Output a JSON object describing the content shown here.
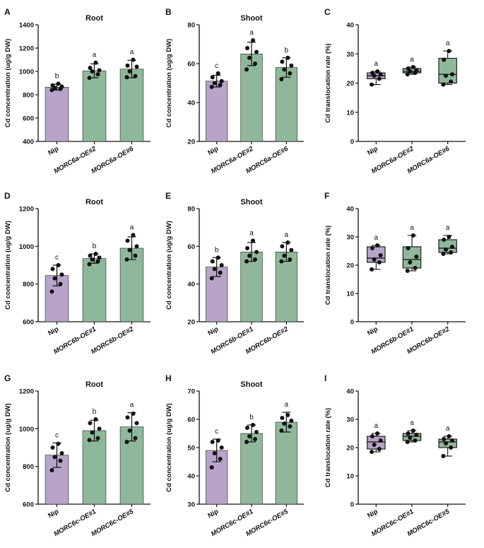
{
  "colors": {
    "nip": "#b8a3c9",
    "oe": "#8fb89a",
    "stroke": "#222222",
    "point": "#111111"
  },
  "chart_data": [
    {
      "panel": "A",
      "type": "bar",
      "title": "Root",
      "ylabel": "Cd concentration (ug/g DW)",
      "ylim": [
        400,
        1400
      ],
      "yticks": [
        400,
        600,
        800,
        1000,
        1200,
        1400
      ],
      "categories": [
        "Nip",
        "MORC6a-OE#2",
        "MORC6a-OE#6"
      ],
      "values": [
        865,
        1005,
        1020
      ],
      "errors": [
        25,
        60,
        75
      ],
      "letters": [
        "b",
        "a",
        "a"
      ],
      "points": [
        [
          840,
          850,
          860,
          870,
          880,
          895
        ],
        [
          945,
          975,
          1000,
          1010,
          1030,
          1075
        ],
        [
          950,
          960,
          1000,
          1040,
          1050,
          1100
        ]
      ]
    },
    {
      "panel": "B",
      "type": "bar",
      "title": "Shoot",
      "ylabel": "Cd concentration (ug/g DW)",
      "ylim": [
        20,
        80
      ],
      "yticks": [
        20,
        40,
        60,
        80
      ],
      "categories": [
        "Nip",
        "MORC6a-OE#2",
        "MORC6a-OE#6"
      ],
      "values": [
        51,
        65,
        58
      ],
      "errors": [
        3,
        6,
        5
      ],
      "letters": [
        "c",
        "a",
        "b"
      ],
      "points": [
        [
          48,
          49,
          50,
          51,
          53,
          55
        ],
        [
          57,
          60,
          63,
          66,
          68,
          72
        ],
        [
          52,
          55,
          57,
          59,
          61,
          63
        ]
      ]
    },
    {
      "panel": "C",
      "type": "box",
      "ylabel": "Cd translocation rate (%)",
      "ylim": [
        0,
        40
      ],
      "yticks": [
        0,
        10,
        20,
        30,
        40
      ],
      "categories": [
        "Nip",
        "MORC6a-OE#2",
        "MORC6a-OE#6"
      ],
      "letters": [
        "a",
        "a",
        "a"
      ],
      "boxes": [
        {
          "min": 19.5,
          "q1": 21.5,
          "median": 22.5,
          "q3": 23.5,
          "max": 24
        },
        {
          "min": 23,
          "q1": 23.5,
          "median": 24,
          "q3": 25,
          "max": 25.5
        },
        {
          "min": 19.5,
          "q1": 20,
          "median": 23,
          "q3": 28.5,
          "max": 31
        }
      ],
      "points": [
        [
          19.5,
          21.5,
          22.5,
          23,
          23.5,
          24
        ],
        [
          23,
          23.5,
          24,
          24.3,
          25,
          25.5
        ],
        [
          19.5,
          20.5,
          22.5,
          23,
          28,
          31
        ]
      ]
    },
    {
      "panel": "D",
      "type": "bar",
      "title": "Root",
      "ylabel": "Cd concentration (ug/g DW)",
      "ylim": [
        600,
        1200
      ],
      "yticks": [
        600,
        800,
        1000,
        1200
      ],
      "categories": [
        "Nip",
        "MORC6b-OE#1",
        "MORC6b-OE#2"
      ],
      "values": [
        845,
        935,
        990
      ],
      "errors": [
        55,
        25,
        60
      ],
      "letters": [
        "c",
        "b",
        "a"
      ],
      "points": [
        [
          760,
          800,
          830,
          850,
          880,
          900
        ],
        [
          905,
          920,
          930,
          940,
          950,
          960
        ],
        [
          930,
          950,
          980,
          1000,
          1030,
          1060
        ]
      ]
    },
    {
      "panel": "E",
      "type": "bar",
      "title": "Shoot",
      "ylabel": "Cd concentration (ug/g DW)",
      "ylim": [
        20,
        80
      ],
      "yticks": [
        20,
        40,
        60,
        80
      ],
      "categories": [
        "Nip",
        "MORC6b-OE#1",
        "MORC6b-OE#2"
      ],
      "values": [
        49,
        57,
        57
      ],
      "errors": [
        5,
        5,
        5
      ],
      "letters": [
        "b",
        "a",
        "a"
      ],
      "points": [
        [
          43,
          46,
          48,
          50,
          52,
          54
        ],
        [
          52,
          53,
          55,
          57,
          59,
          63
        ],
        [
          52,
          53,
          55,
          58,
          60,
          62
        ]
      ]
    },
    {
      "panel": "F",
      "type": "box",
      "ylabel": "Cd translocation rate (%)",
      "ylim": [
        0,
        40
      ],
      "yticks": [
        0,
        10,
        20,
        30,
        40
      ],
      "categories": [
        "Nip",
        "MORC6b-OE#1",
        "MORC6b-OE#2"
      ],
      "letters": [
        "a",
        "a",
        "a"
      ],
      "boxes": [
        {
          "min": 18.5,
          "q1": 21,
          "median": 22.5,
          "q3": 26.5,
          "max": 27
        },
        {
          "min": 18,
          "q1": 19,
          "median": 22,
          "q3": 26.5,
          "max": 30.5
        },
        {
          "min": 24,
          "q1": 24.5,
          "median": 26,
          "q3": 29,
          "max": 30.5
        }
      ],
      "points": [
        [
          18.5,
          21,
          22,
          23.5,
          26,
          27
        ],
        [
          18,
          19,
          21,
          23,
          26,
          30.5
        ],
        [
          24,
          24.5,
          25.5,
          26.5,
          29,
          30
        ]
      ]
    },
    {
      "panel": "G",
      "type": "bar",
      "title": "Root",
      "ylabel": "Cd concentration (ug/g DW)",
      "ylim": [
        600,
        1200
      ],
      "yticks": [
        600,
        800,
        1000,
        1200
      ],
      "categories": [
        "Nip",
        "MORC6c-OE#1",
        "MORC6c-OE#5"
      ],
      "values": [
        860,
        990,
        1010
      ],
      "errors": [
        65,
        55,
        75
      ],
      "letters": [
        "c",
        "b",
        "a"
      ],
      "points": [
        [
          780,
          830,
          850,
          870,
          900,
          920
        ],
        [
          940,
          950,
          980,
          1000,
          1030,
          1050
        ],
        [
          930,
          950,
          990,
          1030,
          1060,
          1080
        ]
      ]
    },
    {
      "panel": "H",
      "type": "bar",
      "title": "Shoot",
      "ylabel": "Cd concentration (ug/g DW)",
      "ylim": [
        30,
        70
      ],
      "yticks": [
        30,
        40,
        50,
        60,
        70
      ],
      "categories": [
        "Nip",
        "MORC6c-OE#1",
        "MORC6c-OE#5"
      ],
      "values": [
        49,
        55,
        59
      ],
      "errors": [
        4,
        3,
        3.5
      ],
      "letters": [
        "c",
        "b",
        "a"
      ],
      "points": [
        [
          43,
          46,
          48,
          50,
          52,
          52.5
        ],
        [
          52,
          53,
          54,
          55.5,
          57,
          58
        ],
        [
          56,
          57.5,
          58.5,
          59.5,
          60.5,
          61.5
        ]
      ]
    },
    {
      "panel": "I",
      "type": "box",
      "ylabel": "Cd translocation rate (%)",
      "ylim": [
        0,
        40
      ],
      "yticks": [
        0,
        10,
        20,
        30,
        40
      ],
      "categories": [
        "Nip",
        "MORC6c-OE#1",
        "MORC6c-OE#5"
      ],
      "letters": [
        "a",
        "a",
        "a"
      ],
      "boxes": [
        {
          "min": 18.5,
          "q1": 19.5,
          "median": 22,
          "q3": 24,
          "max": 25
        },
        {
          "min": 22,
          "q1": 22.5,
          "median": 24,
          "q3": 25,
          "max": 26
        },
        {
          "min": 17,
          "q1": 20,
          "median": 22,
          "q3": 23,
          "max": 24
        }
      ],
      "points": [
        [
          18.5,
          19.5,
          21,
          22.5,
          24,
          25
        ],
        [
          22,
          22.5,
          23.5,
          24.5,
          25,
          26
        ],
        [
          17,
          20,
          21.5,
          22.5,
          23,
          24
        ]
      ]
    }
  ]
}
